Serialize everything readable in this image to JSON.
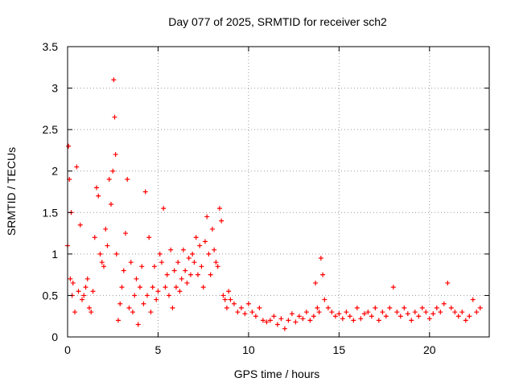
{
  "chart_data": {
    "type": "scatter",
    "title": "Day 077 of 2025, SRMTID for receiver sch2",
    "xlabel": "GPS time / hours",
    "ylabel": "SRMTID / TECUs",
    "xlim": [
      0,
      23.3
    ],
    "ylim": [
      0,
      3.5
    ],
    "xticks": [
      0,
      5,
      10,
      15,
      20
    ],
    "xtick_labels": [
      "0",
      "5",
      "10",
      "15",
      "20"
    ],
    "yticks": [
      0,
      0.5,
      1,
      1.5,
      2,
      2.5,
      3,
      3.5
    ],
    "ytick_labels": [
      "0",
      "0.5",
      "1",
      "1.5",
      "2",
      "2.5",
      "3",
      "3.5"
    ],
    "grid": true,
    "marker": "+",
    "series": [
      {
        "name": "SRMTID",
        "color": "#ff0000",
        "x": [
          0.0,
          0.05,
          0.1,
          0.15,
          0.2,
          0.25,
          0.3,
          0.4,
          0.5,
          0.6,
          0.7,
          0.8,
          0.9,
          1.0,
          1.1,
          1.2,
          1.3,
          1.4,
          1.5,
          1.6,
          1.7,
          1.8,
          1.9,
          2.0,
          2.1,
          2.2,
          2.3,
          2.4,
          2.5,
          2.55,
          2.6,
          2.65,
          2.7,
          2.8,
          2.9,
          3.0,
          3.1,
          3.2,
          3.3,
          3.4,
          3.5,
          3.6,
          3.7,
          3.8,
          3.9,
          4.0,
          4.1,
          4.2,
          4.3,
          4.4,
          4.5,
          4.6,
          4.7,
          4.8,
          4.9,
          5.0,
          5.1,
          5.2,
          5.3,
          5.4,
          5.5,
          5.6,
          5.7,
          5.8,
          5.9,
          6.0,
          6.1,
          6.2,
          6.3,
          6.4,
          6.5,
          6.6,
          6.7,
          6.8,
          6.9,
          7.0,
          7.1,
          7.2,
          7.3,
          7.4,
          7.5,
          7.6,
          7.7,
          7.8,
          7.9,
          8.0,
          8.1,
          8.2,
          8.3,
          8.4,
          8.5,
          8.6,
          8.7,
          8.8,
          8.9,
          9.0,
          9.2,
          9.4,
          9.6,
          9.8,
          10.0,
          10.2,
          10.4,
          10.6,
          10.8,
          11.0,
          11.2,
          11.4,
          11.6,
          11.8,
          12.0,
          12.2,
          12.4,
          12.6,
          12.8,
          13.0,
          13.2,
          13.4,
          13.6,
          13.7,
          13.8,
          13.9,
          14.0,
          14.1,
          14.2,
          14.4,
          14.6,
          14.8,
          15.0,
          15.2,
          15.4,
          15.6,
          15.8,
          16.0,
          16.2,
          16.4,
          16.6,
          16.8,
          17.0,
          17.2,
          17.4,
          17.6,
          17.8,
          18.0,
          18.2,
          18.4,
          18.6,
          18.8,
          19.0,
          19.2,
          19.4,
          19.6,
          19.8,
          20.0,
          20.2,
          20.4,
          20.6,
          20.8,
          21.0,
          21.2,
          21.4,
          21.6,
          21.8,
          22.0,
          22.2,
          22.4,
          22.6,
          22.8
        ],
        "y": [
          1.1,
          2.3,
          1.9,
          0.7,
          1.5,
          0.5,
          0.65,
          0.3,
          2.05,
          0.55,
          1.35,
          0.45,
          0.5,
          0.6,
          0.7,
          0.35,
          0.3,
          0.55,
          1.2,
          1.8,
          1.7,
          1.0,
          0.9,
          0.85,
          1.3,
          1.1,
          1.9,
          1.6,
          2.0,
          3.1,
          2.65,
          2.2,
          1.0,
          0.2,
          0.4,
          0.6,
          0.8,
          1.25,
          1.9,
          0.35,
          0.9,
          0.3,
          0.5,
          0.7,
          0.15,
          0.6,
          0.85,
          0.4,
          1.75,
          0.5,
          1.2,
          0.3,
          0.6,
          0.85,
          0.45,
          0.55,
          1.0,
          0.9,
          1.55,
          0.6,
          0.75,
          0.5,
          1.05,
          0.35,
          0.8,
          0.6,
          0.9,
          0.55,
          0.7,
          1.05,
          0.8,
          0.65,
          0.95,
          0.75,
          1.0,
          0.9,
          1.2,
          0.75,
          1.1,
          0.85,
          0.6,
          1.15,
          1.45,
          1.0,
          0.75,
          1.3,
          1.05,
          0.9,
          0.85,
          1.55,
          1.4,
          0.5,
          0.45,
          0.35,
          0.55,
          0.45,
          0.4,
          0.3,
          0.35,
          0.28,
          0.4,
          0.3,
          0.25,
          0.35,
          0.2,
          0.18,
          0.2,
          0.25,
          0.15,
          0.22,
          0.1,
          0.2,
          0.28,
          0.18,
          0.25,
          0.22,
          0.3,
          0.2,
          0.25,
          0.65,
          0.35,
          0.3,
          0.95,
          0.75,
          0.45,
          0.35,
          0.3,
          0.25,
          0.28,
          0.22,
          0.3,
          0.25,
          0.2,
          0.35,
          0.22,
          0.28,
          0.3,
          0.25,
          0.35,
          0.2,
          0.3,
          0.25,
          0.35,
          0.6,
          0.3,
          0.25,
          0.35,
          0.28,
          0.2,
          0.3,
          0.25,
          0.35,
          0.3,
          0.22,
          0.28,
          0.35,
          0.3,
          0.4,
          0.65,
          0.35,
          0.3,
          0.25,
          0.3,
          0.2,
          0.25,
          0.45,
          0.3,
          0.35
        ]
      }
    ]
  }
}
